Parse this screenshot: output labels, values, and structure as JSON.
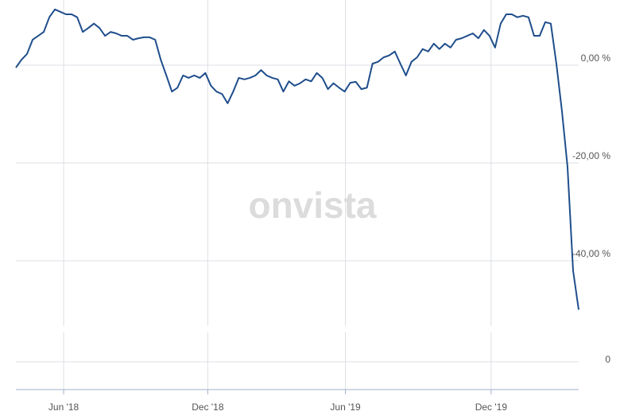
{
  "chart_data": [
    {
      "type": "line",
      "watermark": "onvista",
      "series": [
        {
          "color": "#1f4e8c",
          "values": [
            -0.5,
            1.1,
            2.3,
            5.2,
            6,
            6.8,
            9.8,
            11.4,
            10.9,
            10.4,
            10.4,
            9.8,
            6.8,
            7.6,
            8.5,
            7.6,
            6,
            6.8,
            6.5,
            6,
            6,
            5.2,
            5.5,
            5.7,
            5.7,
            5.2,
            1.1,
            -2.1,
            -5.4,
            -4.6,
            -2.1,
            -2.6,
            -2.1,
            -2.6,
            -1.6,
            -4.2,
            -5.4,
            -5.9,
            -7.8,
            -5.4,
            -2.6,
            -2.9,
            -2.6,
            -2.1,
            -1,
            -2.1,
            -2.6,
            -2.9,
            -5.4,
            -3.3,
            -4.2,
            -3.7,
            -2.9,
            -3.3,
            -1.6,
            -2.6,
            -4.9,
            -3.7,
            -4.6,
            -5.4,
            -3.6,
            -3.4,
            -4.9,
            -4.6,
            0.3,
            0.7,
            1.6,
            2,
            2.8,
            0.3,
            -2.1,
            0.7,
            1.6,
            3.3,
            2.8,
            4.4,
            3.3,
            4.4,
            3.6,
            5.2,
            5.5,
            6,
            6.5,
            5.5,
            7.2,
            6,
            3.6,
            8.5,
            10.4,
            10.4,
            9.8,
            10.1,
            9.8,
            6,
            6,
            8.8,
            8.5,
            0.3,
            -9.4,
            -20.8,
            -42,
            -50
          ]
        }
      ],
      "xlim": [
        0,
        101
      ],
      "xticks": [
        {
          "value": 8.57,
          "label": "Jun '18"
        },
        {
          "value": 34.43,
          "label": "Dec '18"
        },
        {
          "value": 59.14,
          "label": "Jun '19"
        },
        {
          "value": 85.29,
          "label": "Dec '19"
        }
      ],
      "ylim": [
        -53,
        13
      ],
      "yticks": [
        {
          "value": 0,
          "label": "0,00 %"
        },
        {
          "value": -20,
          "label": "-20,00 %"
        },
        {
          "value": -40,
          "label": "-40,00 %"
        }
      ],
      "grid": true
    },
    {
      "type": "bar",
      "yticks": [
        0
      ]
    }
  ]
}
